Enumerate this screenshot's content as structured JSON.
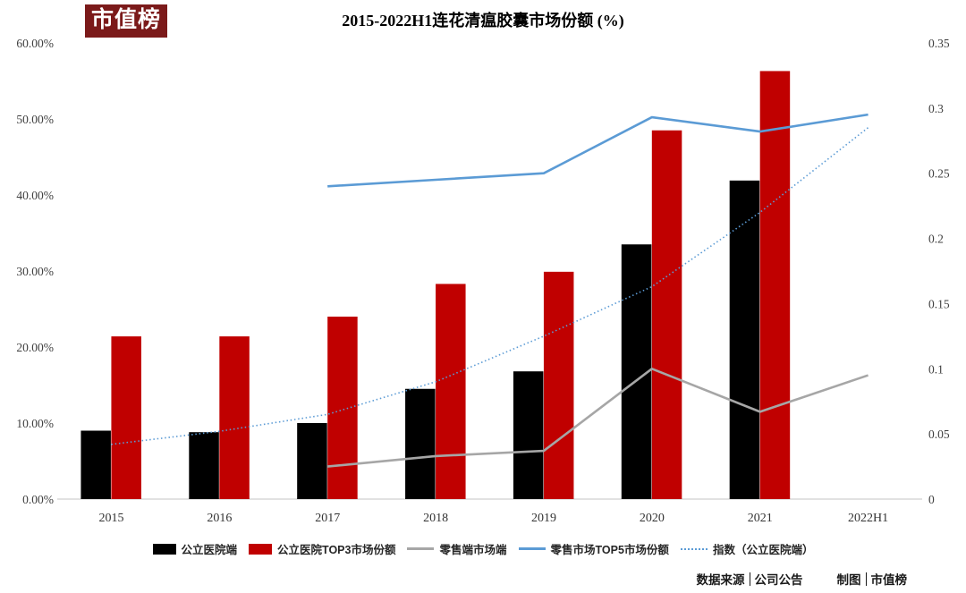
{
  "page": {
    "logo_text": "市值榜",
    "footer": {
      "source_label": "数据来源",
      "source_value": "公司公告",
      "credit_label": "制图",
      "credit_value": "市值榜"
    }
  },
  "colors": {
    "logo_background": "#7B1A1A",
    "bar_black": "#000000",
    "bar_red": "#C00000",
    "line_gray": "#A6A6A6",
    "line_blue": "#5B9BD5",
    "axis_line": "#D9D9D9",
    "tick_text": "#404040"
  },
  "chart_data": {
    "type": "combo-bar-line",
    "title": "2015-2022H1连花清瘟胶囊市场份额 (%)",
    "categories": [
      "2015",
      "2016",
      "2017",
      "2018",
      "2019",
      "2020",
      "2021",
      "2022H1"
    ],
    "series": [
      {
        "name": "公立医院端",
        "type": "bar",
        "axis": "left",
        "color": "#000000",
        "values": [
          9.0,
          8.8,
          10.0,
          14.5,
          16.8,
          33.5,
          41.9,
          null
        ]
      },
      {
        "name": "公立医院TOP3市场份额",
        "type": "bar",
        "axis": "left",
        "color": "#C00000",
        "values": [
          21.4,
          21.4,
          24.0,
          28.3,
          29.9,
          48.5,
          56.3,
          null
        ]
      },
      {
        "name": "零售端市场端",
        "type": "line",
        "axis": "right",
        "color": "#A6A6A6",
        "values": [
          null,
          null,
          0.025,
          0.033,
          0.037,
          0.1,
          0.067,
          0.095
        ]
      },
      {
        "name": "零售市场TOP5市场份额",
        "type": "line",
        "axis": "right",
        "color": "#5B9BD5",
        "values": [
          null,
          null,
          0.24,
          0.245,
          0.25,
          0.293,
          0.282,
          0.295
        ]
      },
      {
        "name": "指数（公立医院端）",
        "type": "line",
        "dashed": true,
        "axis": "right",
        "color": "#5B9BD5",
        "values": [
          0.042,
          0.052,
          0.065,
          0.09,
          0.125,
          0.163,
          0.22,
          0.285
        ]
      }
    ],
    "left_axis": {
      "min": 0,
      "max": 60,
      "step": 10,
      "tick_labels": [
        "60.00%",
        "50.00%",
        "40.00%",
        "30.00%",
        "20.00%",
        "10.00%",
        "0.00%"
      ]
    },
    "right_axis": {
      "min": 0,
      "max": 0.35,
      "step": 0.05,
      "tick_labels": [
        "0.35",
        "0.3",
        "0.25",
        "0.2",
        "0.15",
        "0.1",
        "0.05",
        "0"
      ]
    },
    "grid": false,
    "legend_position": "bottom"
  }
}
